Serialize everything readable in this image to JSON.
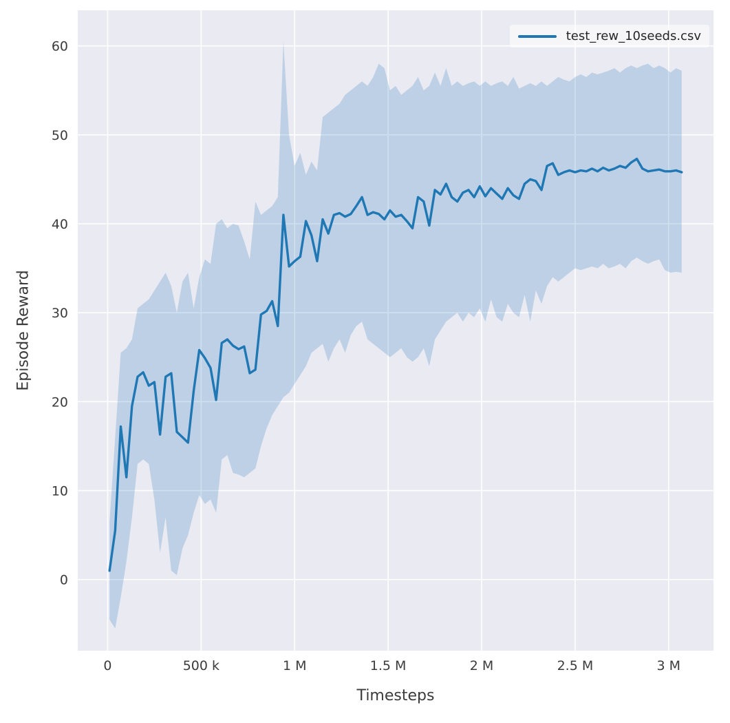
{
  "colors": {
    "line": "#1f77b4",
    "band_opacity": 0.22,
    "plot_bg": "#eaeaf2",
    "grid": "#ffffff",
    "tick_label": "#3b3b3b"
  },
  "chart_data": {
    "type": "line",
    "title": "",
    "xlabel": "Timesteps",
    "ylabel": "Episode Reward",
    "grid": true,
    "legend_position": "upper right",
    "xlim": [
      -160000,
      3240000
    ],
    "ylim": [
      -8,
      64
    ],
    "xticks": {
      "values": [
        0,
        500000,
        1000000,
        1500000,
        2000000,
        2500000,
        3000000
      ],
      "labels": [
        "0",
        "500 k",
        "1 M",
        "1.5 M",
        "2 M",
        "2.5 M",
        "3 M"
      ]
    },
    "yticks": {
      "values": [
        0,
        10,
        20,
        30,
        40,
        50,
        60
      ],
      "labels": [
        "0",
        "10",
        "20",
        "30",
        "40",
        "50",
        "60"
      ]
    },
    "series": [
      {
        "name": "test_rew_10seeds.csv",
        "x": [
          10000,
          40000,
          70000,
          100000,
          130000,
          160000,
          190000,
          220000,
          250000,
          280000,
          310000,
          340000,
          370000,
          400000,
          430000,
          460000,
          490000,
          520000,
          550000,
          580000,
          610000,
          640000,
          670000,
          700000,
          730000,
          760000,
          790000,
          820000,
          850000,
          880000,
          910000,
          940000,
          970000,
          1000000,
          1030000,
          1060000,
          1090000,
          1120000,
          1150000,
          1180000,
          1210000,
          1240000,
          1270000,
          1300000,
          1330000,
          1360000,
          1390000,
          1420000,
          1450000,
          1480000,
          1510000,
          1540000,
          1570000,
          1600000,
          1630000,
          1660000,
          1690000,
          1720000,
          1750000,
          1780000,
          1810000,
          1840000,
          1870000,
          1900000,
          1930000,
          1960000,
          1990000,
          2020000,
          2050000,
          2080000,
          2110000,
          2140000,
          2170000,
          2200000,
          2230000,
          2260000,
          2290000,
          2320000,
          2350000,
          2380000,
          2410000,
          2440000,
          2470000,
          2500000,
          2530000,
          2560000,
          2590000,
          2620000,
          2650000,
          2680000,
          2710000,
          2740000,
          2770000,
          2800000,
          2830000,
          2860000,
          2890000,
          2920000,
          2950000,
          2980000,
          3010000,
          3040000,
          3070000
        ],
        "mean": [
          1.0,
          5.5,
          17.2,
          11.5,
          19.5,
          22.8,
          23.3,
          21.8,
          22.2,
          16.3,
          22.8,
          23.2,
          16.6,
          16.0,
          15.4,
          21.2,
          25.8,
          24.9,
          23.8,
          20.2,
          26.6,
          27.0,
          26.3,
          25.9,
          26.2,
          23.2,
          23.6,
          29.8,
          30.2,
          31.3,
          28.5,
          41.0,
          35.2,
          35.8,
          36.3,
          40.3,
          38.7,
          35.8,
          40.5,
          38.9,
          41.0,
          41.2,
          40.8,
          41.1,
          42.0,
          43.0,
          41.0,
          41.3,
          41.1,
          40.5,
          41.5,
          40.8,
          41.0,
          40.3,
          39.5,
          43.0,
          42.5,
          39.8,
          43.8,
          43.3,
          44.5,
          43.0,
          42.5,
          43.5,
          43.8,
          43.0,
          44.2,
          43.1,
          44.0,
          43.4,
          42.8,
          44.0,
          43.2,
          42.8,
          44.5,
          45.0,
          44.8,
          43.8,
          46.5,
          46.8,
          45.5,
          45.8,
          46.0,
          45.8,
          46.0,
          45.9,
          46.2,
          45.9,
          46.3,
          46.0,
          46.2,
          46.5,
          46.3,
          46.9,
          47.3,
          46.2,
          45.9,
          46.0,
          46.1,
          45.9,
          45.9,
          46.0,
          45.8
        ],
        "lower": [
          -4.5,
          -5.5,
          -2.0,
          2.0,
          7.0,
          13.0,
          13.5,
          13.0,
          9.0,
          3.0,
          7.0,
          1.0,
          0.5,
          3.5,
          5.0,
          7.5,
          9.5,
          8.5,
          9.0,
          7.5,
          13.5,
          14.0,
          12.0,
          11.8,
          11.5,
          12.0,
          12.5,
          15.0,
          17.0,
          18.5,
          19.5,
          20.5,
          21.0,
          22.0,
          23.0,
          24.0,
          25.5,
          26.0,
          26.5,
          24.5,
          26.0,
          27.0,
          25.5,
          27.5,
          28.5,
          29.0,
          27.0,
          26.5,
          26.0,
          25.5,
          25.0,
          25.5,
          26.0,
          25.0,
          24.5,
          25.0,
          26.0,
          24.0,
          27.0,
          28.0,
          29.0,
          29.5,
          30.0,
          29.0,
          30.0,
          29.5,
          30.5,
          29.0,
          31.5,
          29.5,
          29.0,
          31.0,
          30.0,
          29.5,
          32.0,
          29.0,
          32.5,
          31.0,
          33.0,
          34.0,
          33.5,
          34.0,
          34.5,
          35.0,
          34.8,
          35.0,
          35.2,
          35.0,
          35.5,
          35.0,
          35.2,
          35.5,
          35.0,
          35.8,
          36.2,
          35.8,
          35.5,
          35.8,
          36.0,
          34.8,
          34.5,
          34.6,
          34.5
        ],
        "upper": [
          6.5,
          16.0,
          25.5,
          26.0,
          27.0,
          30.5,
          31.0,
          31.5,
          32.5,
          33.5,
          34.5,
          33.0,
          30.0,
          33.5,
          34.5,
          30.5,
          34.0,
          36.0,
          35.5,
          40.0,
          40.5,
          39.5,
          40.0,
          39.8,
          38.0,
          36.0,
          42.5,
          41.0,
          41.5,
          42.0,
          43.0,
          60.5,
          50.0,
          46.5,
          48.0,
          45.5,
          47.0,
          46.0,
          52.0,
          52.5,
          53.0,
          53.5,
          54.5,
          55.0,
          55.5,
          56.0,
          55.5,
          56.5,
          58.0,
          57.5,
          55.0,
          55.5,
          54.5,
          55.0,
          55.5,
          56.5,
          55.0,
          55.5,
          57.0,
          55.5,
          57.5,
          55.5,
          56.0,
          55.5,
          55.8,
          56.0,
          55.5,
          56.0,
          55.5,
          55.8,
          56.0,
          55.5,
          56.5,
          55.2,
          55.5,
          55.8,
          55.5,
          56.0,
          55.5,
          56.0,
          56.5,
          56.2,
          56.0,
          56.5,
          56.8,
          56.5,
          57.0,
          56.8,
          57.0,
          57.2,
          57.5,
          57.0,
          57.5,
          57.8,
          57.5,
          57.8,
          58.0,
          57.5,
          57.8,
          57.5,
          57.0,
          57.5,
          57.2
        ]
      }
    ]
  }
}
